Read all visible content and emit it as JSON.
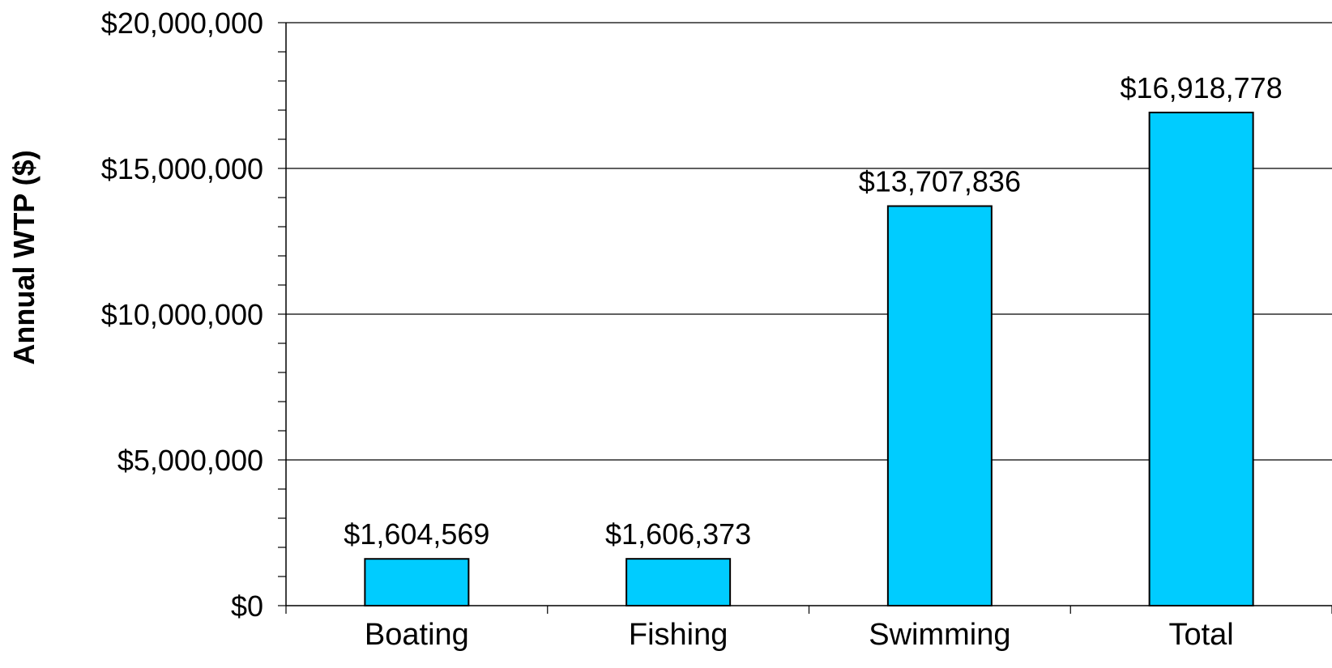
{
  "chart_data": {
    "type": "bar",
    "title": "",
    "xlabel": "",
    "ylabel": "Annual WTP ($)",
    "categories": [
      "Boating",
      "Fishing",
      "Swimming",
      "Total"
    ],
    "values": [
      1604569,
      1606373,
      13707836,
      16918778
    ],
    "data_labels": [
      "$1,604,569",
      "$1,606,373",
      "$13,707,836",
      "$16,918,778"
    ],
    "ylim": [
      0,
      20000000
    ],
    "y_major_ticks": [
      0,
      5000000,
      10000000,
      15000000,
      20000000
    ],
    "y_tick_labels": [
      "$0",
      "$5,000,000",
      "$10,000,000",
      "$15,000,000",
      "$20,000,000"
    ],
    "y_minor_step": 1000000,
    "grid": true,
    "legend": "none",
    "bar_color": "#00CCFF",
    "bar_edge_color": "#000000"
  }
}
